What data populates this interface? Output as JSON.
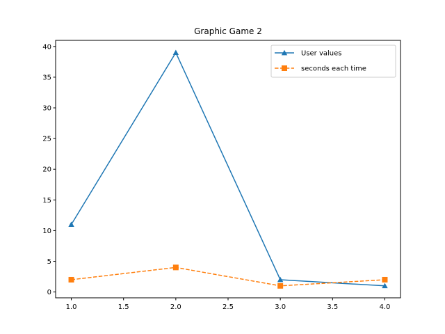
{
  "chart_data": {
    "type": "line",
    "title": "Graphic Game 2",
    "xlabel": "",
    "ylabel": "",
    "x": [
      1.0,
      2.0,
      3.0,
      4.0
    ],
    "xlim": [
      0.85,
      4.15
    ],
    "ylim": [
      -0.95,
      41.0
    ],
    "x_ticks": [
      "1.0",
      "1.5",
      "2.0",
      "2.5",
      "3.0",
      "3.5",
      "4.0"
    ],
    "y_ticks": [
      "0",
      "5",
      "10",
      "15",
      "20",
      "25",
      "30",
      "35",
      "40"
    ],
    "grid": false,
    "legend_position": "top-right",
    "series": [
      {
        "name": "User values",
        "values": [
          11,
          39,
          2,
          1
        ],
        "color": "#1f77b4",
        "marker": "triangle",
        "linestyle": "solid"
      },
      {
        "name": "seconds each time",
        "values": [
          2,
          4,
          1,
          2
        ],
        "color": "#ff7f0e",
        "marker": "square",
        "linestyle": "dashed"
      }
    ]
  }
}
